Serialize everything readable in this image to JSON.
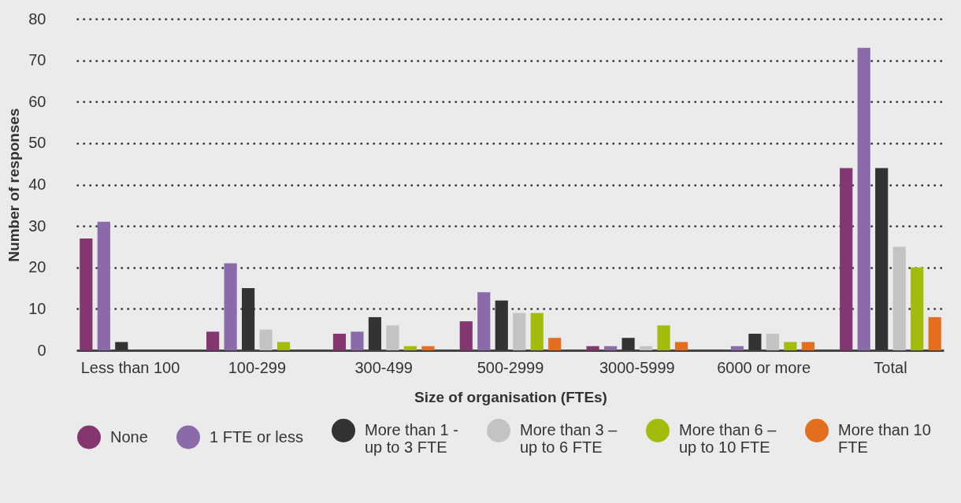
{
  "chart_data": {
    "type": "bar",
    "xlabel": "Size of organisation (FTEs)",
    "ylabel": "Number of responses",
    "categories": [
      "Less than 100",
      "100-299",
      "300-499",
      "500-2999",
      "3000-5999",
      "6000 or more",
      "Total"
    ],
    "series": [
      {
        "name": "None",
        "color": "#84366f",
        "values": [
          27,
          4.5,
          4,
          7,
          1,
          0,
          44
        ]
      },
      {
        "name": "1 FTE or less",
        "color": "#8a6aa8",
        "values": [
          31,
          21,
          4.5,
          14,
          1,
          1,
          73
        ]
      },
      {
        "name": "More than 1 - up to 3 FTE",
        "color": "#333333",
        "values": [
          2,
          15,
          8,
          12,
          3,
          4,
          44
        ]
      },
      {
        "name": "More than 3 – up to 6 FTE",
        "color": "#c3c3c3",
        "values": [
          0,
          5,
          6,
          9,
          1,
          4,
          25
        ]
      },
      {
        "name": "More than 6 – up to 10 FTE",
        "color": "#a3bc0b",
        "values": [
          0,
          2,
          1,
          9,
          6,
          2,
          20
        ]
      },
      {
        "name": "More than 10 FTE",
        "color": "#e36e1f",
        "values": [
          0,
          0,
          1,
          3,
          2,
          2,
          8
        ]
      }
    ],
    "ylim": [
      0,
      80
    ],
    "yticks": [
      0,
      10,
      20,
      30,
      40,
      50,
      60,
      70,
      80
    ],
    "grid": "y",
    "legend": "bottom"
  }
}
